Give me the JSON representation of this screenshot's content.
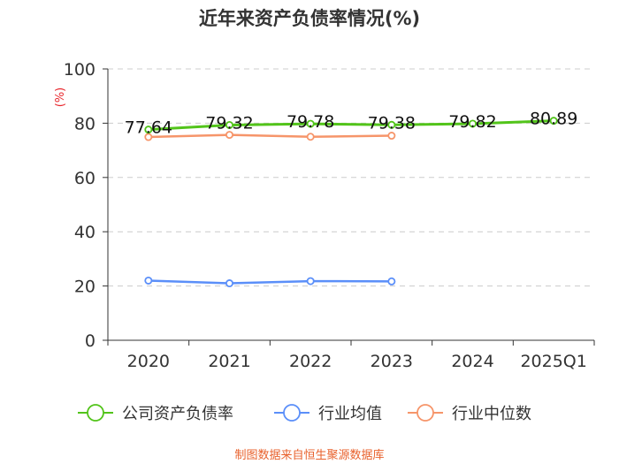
{
  "chart_data": {
    "type": "line",
    "title": "近年来资产负债率情况(%)",
    "ylabel": "(%)",
    "xlabel": "",
    "ylim": [
      0,
      100
    ],
    "yticks": [
      0,
      20,
      40,
      60,
      80,
      100
    ],
    "grid": true,
    "legend_position": "bottom",
    "categories": [
      "2020",
      "2021",
      "2022",
      "2023",
      "2024",
      "2025Q1"
    ],
    "series": [
      {
        "name": "公司资产负债率",
        "color": "#52c41a",
        "values": [
          77.64,
          79.32,
          79.78,
          79.38,
          79.82,
          80.89
        ],
        "value_labels": [
          "77.64",
          "79.32",
          "79.78",
          "79.38",
          "79.82",
          "80.89"
        ]
      },
      {
        "name": "行业均值",
        "color": "#5b8ff9",
        "values": [
          22.0,
          21.0,
          21.8,
          21.7,
          null,
          null
        ]
      },
      {
        "name": "行业中位数",
        "color": "#f6956a",
        "values": [
          74.9,
          75.7,
          75.0,
          75.4,
          null,
          null
        ]
      }
    ],
    "source": "制图数据来自恒生聚源数据库",
    "colors": {
      "axis": "#333333",
      "grid": "#cccccc",
      "unit_label": "#e8262c",
      "source_text": "#e8612c"
    }
  }
}
